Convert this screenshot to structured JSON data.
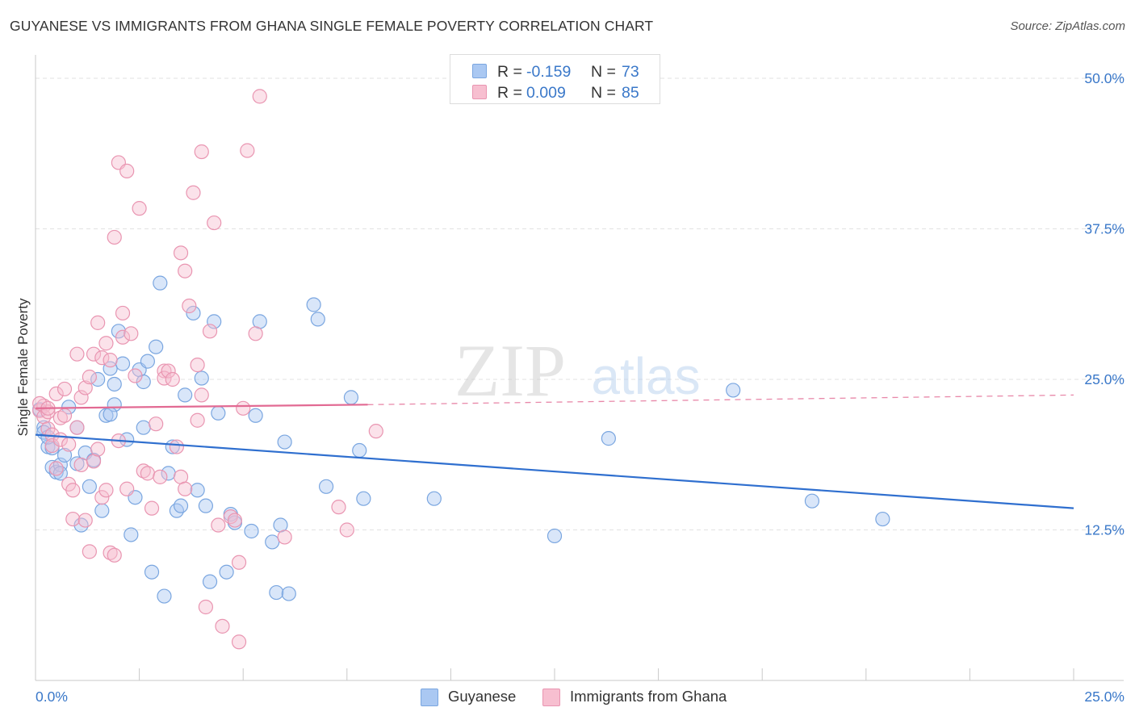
{
  "title": "GUYANESE VS IMMIGRANTS FROM GHANA SINGLE FEMALE POVERTY CORRELATION CHART",
  "source": "Source: ZipAtlas.com",
  "watermark": {
    "zip": "ZIP",
    "atlas": "atlas"
  },
  "colors": {
    "blue_fill": "#aac8f2",
    "blue_stroke": "#7aa6e0",
    "blue_line": "#2f6fcf",
    "pink_fill": "#f7bfd0",
    "pink_stroke": "#e995b1",
    "pink_line": "#e26a93",
    "tick_label": "#3a78c9",
    "grid": "#e2e2e2"
  },
  "stats": {
    "r_label": "R =",
    "n_label": "N =",
    "rows": [
      {
        "series": "Guyanese",
        "r": "-0.159",
        "n": "73"
      },
      {
        "series": "Immigrants from Ghana",
        "r": "0.009",
        "n": "85"
      }
    ]
  },
  "legend": [
    "Guyanese",
    "Immigrants from Ghana"
  ],
  "chart_data": {
    "type": "scatter",
    "title": "GUYANESE VS IMMIGRANTS FROM GHANA SINGLE FEMALE POVERTY CORRELATION CHART",
    "xlabel": "",
    "ylabel": "Single Female Poverty",
    "xlim": [
      0,
      25
    ],
    "ylim": [
      0,
      50
    ],
    "x_tick_labels": [
      "0.0%",
      "25.0%"
    ],
    "y_ticks": [
      12.5,
      25.0,
      37.5,
      50.0
    ],
    "y_tick_labels": [
      "12.5%",
      "25.0%",
      "37.5%",
      "50.0%"
    ],
    "grid": true,
    "legend_position": "bottom-center",
    "series": [
      {
        "name": "Guyanese",
        "trend": {
          "x": [
            0,
            25
          ],
          "y": [
            20.4,
            14.3
          ]
        },
        "points": [
          [
            0.2,
            21.0
          ],
          [
            0.2,
            20.6
          ],
          [
            0.3,
            19.4
          ],
          [
            0.4,
            19.3
          ],
          [
            0.4,
            17.7
          ],
          [
            0.5,
            17.3
          ],
          [
            0.6,
            17.9
          ],
          [
            0.7,
            18.7
          ],
          [
            0.8,
            22.7
          ],
          [
            1.0,
            18.0
          ],
          [
            1.0,
            21.0
          ],
          [
            1.1,
            12.9
          ],
          [
            1.2,
            18.9
          ],
          [
            1.3,
            16.1
          ],
          [
            1.4,
            18.3
          ],
          [
            1.5,
            25.0
          ],
          [
            1.6,
            14.1
          ],
          [
            1.7,
            22.0
          ],
          [
            1.8,
            25.9
          ],
          [
            1.9,
            24.6
          ],
          [
            1.9,
            22.9
          ],
          [
            2.0,
            29.0
          ],
          [
            2.1,
            26.3
          ],
          [
            2.2,
            20.0
          ],
          [
            2.3,
            12.1
          ],
          [
            2.4,
            15.2
          ],
          [
            2.5,
            25.8
          ],
          [
            2.6,
            24.8
          ],
          [
            2.6,
            21.0
          ],
          [
            2.7,
            26.5
          ],
          [
            2.8,
            9.0
          ],
          [
            2.9,
            27.7
          ],
          [
            3.0,
            33.0
          ],
          [
            3.1,
            7.0
          ],
          [
            3.2,
            17.2
          ],
          [
            3.3,
            19.4
          ],
          [
            3.4,
            14.1
          ],
          [
            3.5,
            14.5
          ],
          [
            3.6,
            23.7
          ],
          [
            3.8,
            30.5
          ],
          [
            3.9,
            15.8
          ],
          [
            4.0,
            25.1
          ],
          [
            4.1,
            14.5
          ],
          [
            4.2,
            8.2
          ],
          [
            4.3,
            29.8
          ],
          [
            4.4,
            22.2
          ],
          [
            4.6,
            9.0
          ],
          [
            4.7,
            13.8
          ],
          [
            4.8,
            13.1
          ],
          [
            5.2,
            12.4
          ],
          [
            5.3,
            22.0
          ],
          [
            5.4,
            29.8
          ],
          [
            5.7,
            11.5
          ],
          [
            5.8,
            7.3
          ],
          [
            5.9,
            12.9
          ],
          [
            6.0,
            19.8
          ],
          [
            6.1,
            7.2
          ],
          [
            6.7,
            31.2
          ],
          [
            6.8,
            30.0
          ],
          [
            7.0,
            16.1
          ],
          [
            7.6,
            23.5
          ],
          [
            7.8,
            19.1
          ],
          [
            7.9,
            15.1
          ],
          [
            9.6,
            15.1
          ],
          [
            12.5,
            12.0
          ],
          [
            13.8,
            20.1
          ],
          [
            16.8,
            24.1
          ],
          [
            18.7,
            14.9
          ],
          [
            20.4,
            13.4
          ],
          [
            0.1,
            22.5
          ],
          [
            0.3,
            20.2
          ],
          [
            0.6,
            17.2
          ],
          [
            1.8,
            22.1
          ]
        ]
      },
      {
        "name": "Immigrants from Ghana",
        "trend": {
          "x": [
            0,
            8
          ],
          "y": [
            22.6,
            22.9
          ]
        },
        "trend_dashed": {
          "x": [
            8,
            25
          ],
          "y": [
            22.9,
            23.7
          ]
        },
        "points": [
          [
            0.1,
            22.4
          ],
          [
            0.2,
            22.8
          ],
          [
            0.2,
            21.9
          ],
          [
            0.3,
            22.3
          ],
          [
            0.3,
            20.9
          ],
          [
            0.4,
            20.4
          ],
          [
            0.4,
            19.5
          ],
          [
            0.5,
            23.8
          ],
          [
            0.5,
            17.6
          ],
          [
            0.6,
            21.8
          ],
          [
            0.6,
            20.0
          ],
          [
            0.7,
            24.2
          ],
          [
            0.7,
            22.0
          ],
          [
            0.8,
            19.6
          ],
          [
            0.8,
            16.3
          ],
          [
            0.9,
            15.8
          ],
          [
            0.9,
            13.4
          ],
          [
            1.0,
            27.1
          ],
          [
            1.0,
            21.0
          ],
          [
            1.1,
            23.5
          ],
          [
            1.1,
            17.9
          ],
          [
            1.2,
            24.3
          ],
          [
            1.2,
            13.3
          ],
          [
            1.3,
            25.2
          ],
          [
            1.3,
            10.7
          ],
          [
            1.4,
            27.1
          ],
          [
            1.4,
            18.2
          ],
          [
            1.5,
            29.7
          ],
          [
            1.5,
            19.2
          ],
          [
            1.6,
            26.8
          ],
          [
            1.6,
            15.2
          ],
          [
            1.7,
            28.0
          ],
          [
            1.7,
            15.8
          ],
          [
            1.8,
            26.6
          ],
          [
            1.8,
            10.6
          ],
          [
            1.9,
            10.4
          ],
          [
            1.9,
            36.8
          ],
          [
            2.0,
            19.9
          ],
          [
            2.0,
            43.0
          ],
          [
            2.1,
            30.5
          ],
          [
            2.1,
            28.5
          ],
          [
            2.2,
            15.9
          ],
          [
            2.2,
            42.3
          ],
          [
            2.3,
            28.8
          ],
          [
            2.4,
            25.3
          ],
          [
            2.5,
            39.2
          ],
          [
            2.6,
            17.4
          ],
          [
            2.7,
            17.2
          ],
          [
            2.8,
            14.3
          ],
          [
            2.9,
            21.3
          ],
          [
            3.0,
            16.9
          ],
          [
            3.1,
            25.7
          ],
          [
            3.1,
            25.1
          ],
          [
            3.2,
            25.7
          ],
          [
            3.3,
            25.0
          ],
          [
            3.4,
            19.4
          ],
          [
            3.5,
            35.5
          ],
          [
            3.5,
            16.9
          ],
          [
            3.6,
            34.0
          ],
          [
            3.6,
            15.9
          ],
          [
            3.7,
            31.1
          ],
          [
            3.8,
            40.5
          ],
          [
            3.9,
            26.2
          ],
          [
            3.9,
            21.6
          ],
          [
            4.0,
            43.9
          ],
          [
            4.0,
            23.7
          ],
          [
            4.1,
            6.1
          ],
          [
            4.2,
            29.0
          ],
          [
            4.3,
            38.0
          ],
          [
            4.4,
            12.9
          ],
          [
            4.5,
            4.5
          ],
          [
            4.7,
            13.6
          ],
          [
            4.8,
            13.3
          ],
          [
            4.9,
            9.8
          ],
          [
            4.9,
            3.2
          ],
          [
            5.0,
            22.6
          ],
          [
            5.1,
            44.0
          ],
          [
            5.3,
            28.8
          ],
          [
            5.4,
            48.5
          ],
          [
            6.0,
            11.9
          ],
          [
            7.3,
            14.4
          ],
          [
            7.5,
            12.5
          ],
          [
            8.2,
            20.7
          ],
          [
            0.1,
            23.0
          ],
          [
            0.3,
            22.6
          ]
        ]
      }
    ]
  }
}
